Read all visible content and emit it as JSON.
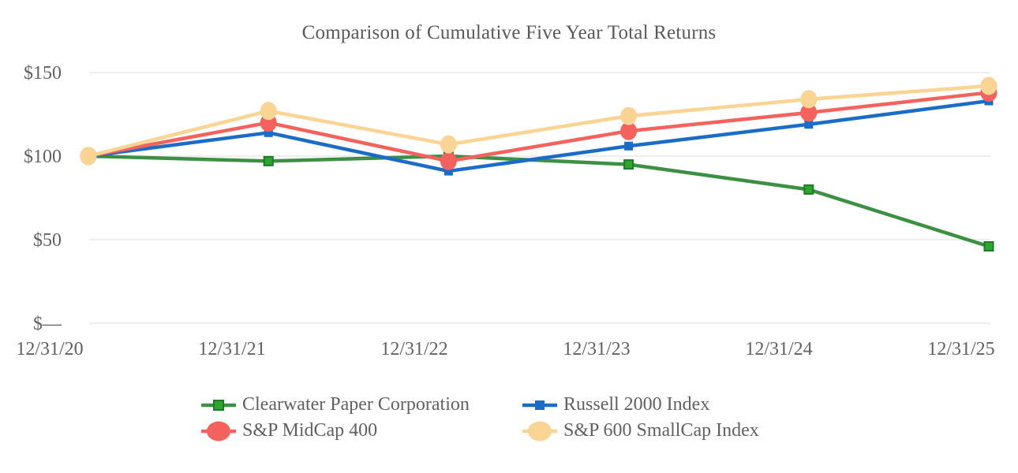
{
  "chart_data": {
    "type": "line",
    "title": "Comparison of Cumulative Five Year Total Returns",
    "x_categories": [
      "12/31/20",
      "12/31/21",
      "12/31/22",
      "12/31/23",
      "12/31/24",
      "12/31/25"
    ],
    "y_ticks": [
      {
        "label": "$—",
        "value": 0
      },
      {
        "label": "$50",
        "value": 50
      },
      {
        "label": "$100",
        "value": 100
      },
      {
        "label": "$150",
        "value": 150
      }
    ],
    "ylim": [
      0,
      150
    ],
    "xlabel": "",
    "ylabel": "",
    "grid": "horizontal-only",
    "legend_position": "bottom",
    "series": [
      {
        "name": "Clearwater Paper Corporation",
        "marker": "square",
        "color": "#3c9043",
        "marker_fill": "#2fa52f",
        "marker_stroke": "#1b7a26",
        "values": [
          100,
          97,
          100,
          95,
          80,
          46
        ]
      },
      {
        "name": "Russell 2000 Index",
        "marker": "square",
        "color": "#1b6cc7",
        "marker_fill": "#1b6cc7",
        "marker_stroke": "none",
        "values": [
          100,
          114,
          91,
          106,
          119,
          133
        ]
      },
      {
        "name": "S&P MidCap 400",
        "marker": "circle",
        "color": "#f4625d",
        "marker_fill": "#f4625d",
        "marker_stroke": "none",
        "values": [
          100,
          120,
          97,
          115,
          126,
          138
        ]
      },
      {
        "name": "S&P 600 SmallCap Index",
        "marker": "circle",
        "color": "#f9d492",
        "marker_fill": "#f9d492",
        "marker_stroke": "none",
        "values": [
          100,
          127,
          107,
          124,
          134,
          142
        ]
      }
    ],
    "colors": {
      "title_text": "#595959",
      "axis_text": "#616161",
      "gridline": "#e8e8e8",
      "background": "#ffffff"
    }
  }
}
